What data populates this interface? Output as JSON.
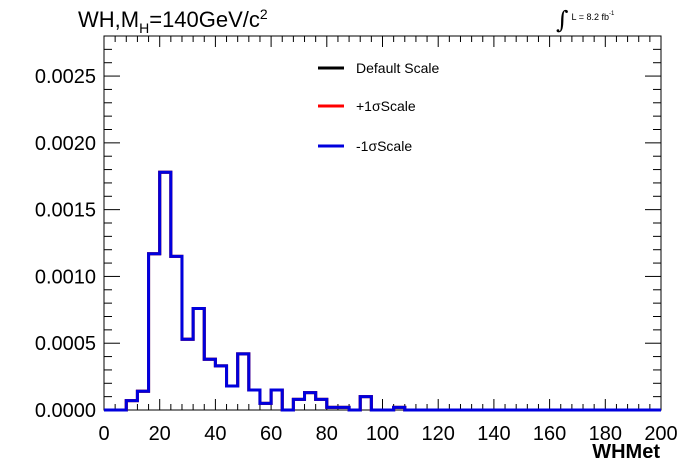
{
  "chart_data": {
    "type": "histogram",
    "title": {
      "prefix": "WH,M",
      "sub": "H",
      "middle": "=140GeV/c",
      "sup": "2"
    },
    "lumi": {
      "symbol": "∫",
      "text": "L = 8.2 fb",
      "sup": "-1"
    },
    "xlabel": "WHMet",
    "ylabel": "",
    "xlim": [
      0,
      200
    ],
    "ylim": [
      0,
      0.0028
    ],
    "xticks": [
      "0",
      "20",
      "40",
      "60",
      "80",
      "100",
      "120",
      "140",
      "160",
      "180",
      "200"
    ],
    "xtick_values": [
      0,
      20,
      40,
      60,
      80,
      100,
      120,
      140,
      160,
      180,
      200
    ],
    "yticks": [
      "0.0000",
      "0.0005",
      "0.0010",
      "0.0015",
      "0.0020",
      "0.0025"
    ],
    "ytick_values": [
      0,
      0.0005,
      0.001,
      0.0015,
      0.002,
      0.0025
    ],
    "bin_width": 4,
    "bin_edges_start": 0,
    "legend_position": "top-right",
    "series": [
      {
        "name": "Default Scale",
        "color": "#000000",
        "values": [
          0,
          0,
          7e-05,
          0.00014,
          0.00117,
          0.00178,
          0.00115,
          0.00053,
          0.00076,
          0.00038,
          0.00033,
          0.00018,
          0.00042,
          0.00015,
          5e-05,
          0.00015,
          0,
          8e-05,
          0.00013,
          8e-05,
          2e-05,
          2e-05,
          0,
          0.0001,
          0,
          0,
          2e-05,
          0,
          0,
          0,
          0,
          0,
          0,
          0,
          0,
          0,
          0,
          0,
          0,
          0,
          0,
          0,
          0,
          0,
          0,
          0,
          0,
          0,
          0,
          0
        ]
      },
      {
        "name": "+1σScale",
        "color": "#ff0000",
        "values": [
          0,
          0,
          7e-05,
          0.00014,
          0.00117,
          0.00178,
          0.00115,
          0.00053,
          0.00076,
          0.00038,
          0.00033,
          0.00018,
          0.00042,
          0.00015,
          5e-05,
          0.00015,
          0,
          8e-05,
          0.00013,
          8e-05,
          2e-05,
          2e-05,
          0,
          0.0001,
          0,
          0,
          2e-05,
          0,
          0,
          0,
          0,
          0,
          0,
          0,
          0,
          0,
          0,
          0,
          0,
          0,
          0,
          0,
          0,
          0,
          0,
          0,
          0,
          0,
          0,
          0
        ]
      },
      {
        "name": "-1σScale",
        "color": "#0000dd",
        "values": [
          0,
          0,
          7e-05,
          0.00014,
          0.00117,
          0.00178,
          0.00115,
          0.00053,
          0.00076,
          0.00038,
          0.00033,
          0.00018,
          0.00042,
          0.00015,
          5e-05,
          0.00015,
          0,
          8e-05,
          0.00013,
          8e-05,
          2e-05,
          2e-05,
          0,
          0.0001,
          0,
          0,
          2e-05,
          0,
          0,
          0,
          0,
          0,
          0,
          0,
          0,
          0,
          0,
          0,
          0,
          0,
          0,
          0,
          0,
          0,
          0,
          0,
          0,
          0,
          0,
          0
        ]
      }
    ]
  }
}
